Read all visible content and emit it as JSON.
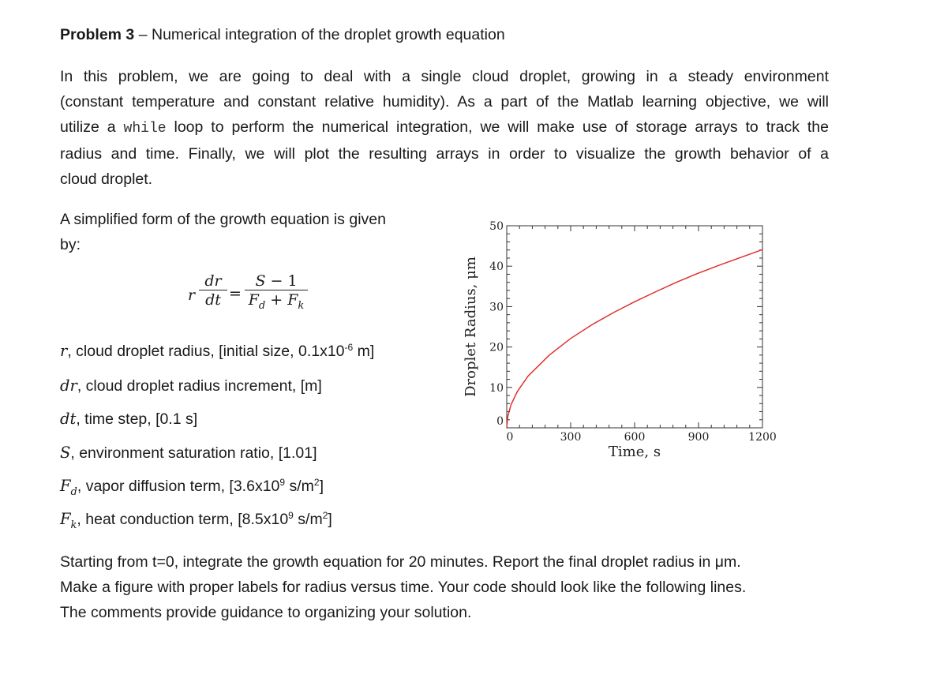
{
  "problem": {
    "label": "Problem 3",
    "dash": " – ",
    "title": "Numerical integration of the droplet growth equation"
  },
  "intro": {
    "line1": "In this problem, we are going to deal with a single cloud droplet, growing in a steady environment",
    "line2": "(constant temperature and constant relative humidity). As a part of the Matlab learning objective, we will",
    "line3_pre": "utilize a ",
    "line3_code": "while",
    "line3_post": " loop to perform the numerical integration, we will make use of storage arrays to track the",
    "line4": "radius and time. Finally, we will plot the resulting arrays in order to visualize the growth behavior of a",
    "line5": "cloud droplet."
  },
  "lead": {
    "line1": "A simplified form of the growth equation is given",
    "line2": "by:"
  },
  "equation": {
    "r": "r",
    "dr": "dr",
    "dt": "dt",
    "equals": "=",
    "numerator": "S − 1",
    "den_fd": "F",
    "den_d": "d",
    "den_plus": " + F",
    "den_k": "k"
  },
  "definitions": {
    "r_sym": "r",
    "r_text": ", cloud droplet radius, [initial size, 0.1x10",
    "r_exp": "-6",
    "r_unit": " m]",
    "dr_sym": "dr",
    "dr_text": ", cloud droplet radius increment, [m]",
    "dt_sym": "dt",
    "dt_text": ", time step, [0.1 s]",
    "s_sym": "S",
    "s_text": ", environment saturation ratio, [1.01]",
    "fd_sym": "F",
    "fd_sub": "d",
    "fd_text": ", vapor diffusion term, [3.6x10",
    "fd_exp": "9",
    "fd_unit": " s/m",
    "fd_unit_exp": "2",
    "fd_close": "]",
    "fk_sym": "F",
    "fk_sub": "k",
    "fk_text": ", heat conduction term, [8.5x10",
    "fk_exp": "9",
    "fk_unit": " s/m",
    "fk_unit_exp": "2",
    "fk_close": "]"
  },
  "final": {
    "line1": "Starting from t=0, integrate the growth equation for 20 minutes. Report the final droplet radius in μm.",
    "line2": "Make a figure with proper labels for radius versus time. Your code should look like the following lines.",
    "line3": "The comments provide guidance to organizing your solution."
  },
  "chart_data": {
    "type": "line",
    "xlabel": "Time, s",
    "ylabel": "Droplet Radius, μm",
    "xlim": [
      0,
      1200
    ],
    "ylim": [
      0,
      50
    ],
    "xticks": [
      0,
      300,
      600,
      900,
      1200
    ],
    "yticks": [
      0,
      10,
      20,
      30,
      40,
      50
    ],
    "line_color": "#e03030",
    "series": [
      {
        "x": [
          0,
          5,
          20,
          50,
          100,
          200,
          300,
          400,
          500,
          600,
          700,
          800,
          900,
          1000,
          1100,
          1200
        ],
        "values": [
          0.1,
          2.9,
          5.7,
          9.0,
          12.8,
          18.0,
          22.1,
          25.5,
          28.5,
          31.2,
          33.7,
          36.1,
          38.3,
          40.3,
          42.2,
          44.1
        ]
      }
    ]
  }
}
